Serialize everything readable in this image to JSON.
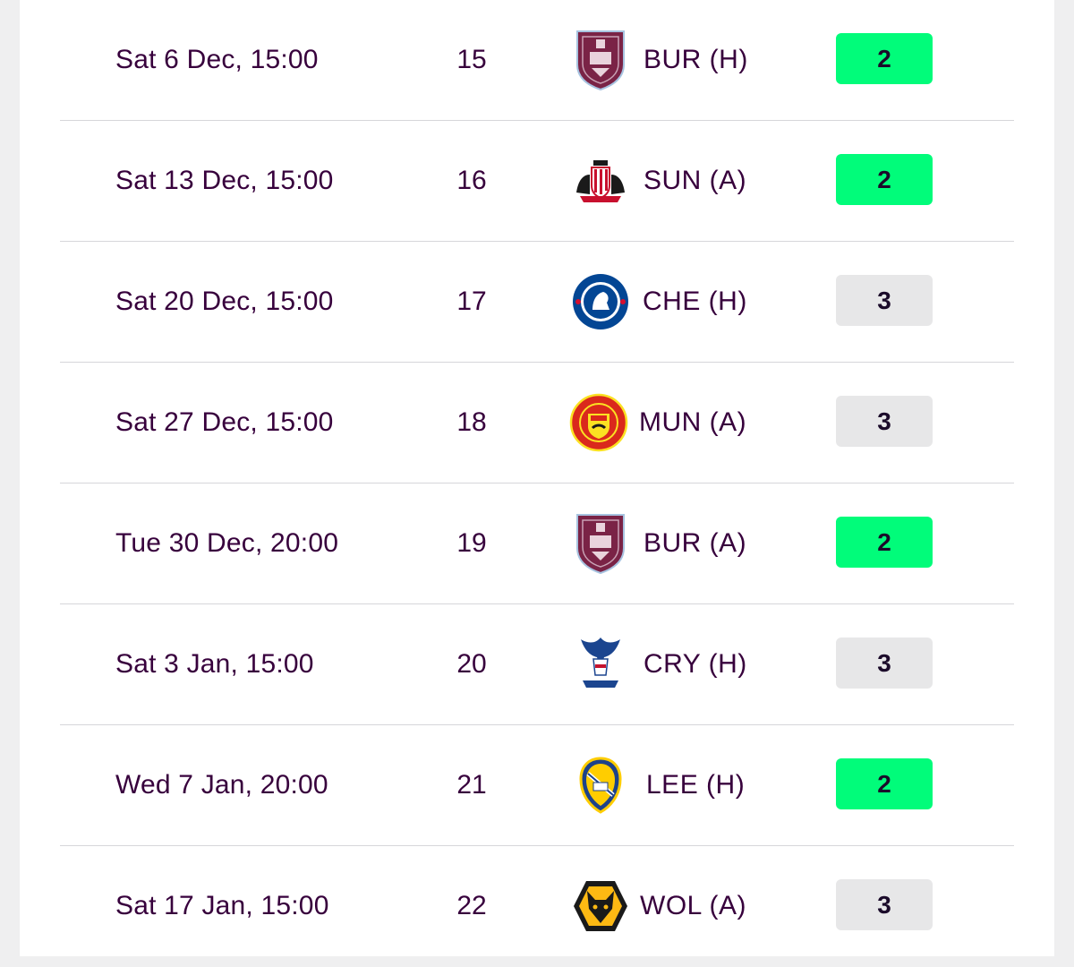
{
  "colors": {
    "text": "#37003c",
    "fdr_2": "#01fc7a",
    "fdr_3": "#e7e7e8",
    "divider": "#d6d6da"
  },
  "fixtures": [
    {
      "date": "Sat 6 Dec, 15:00",
      "gameweek": "15",
      "opponent": "BUR (H)",
      "crest": "burnley-crest-icon",
      "difficulty": "2"
    },
    {
      "date": "Sat 13 Dec, 15:00",
      "gameweek": "16",
      "opponent": "SUN (A)",
      "crest": "sunderland-crest-icon",
      "difficulty": "2"
    },
    {
      "date": "Sat 20 Dec, 15:00",
      "gameweek": "17",
      "opponent": "CHE (H)",
      "crest": "chelsea-crest-icon",
      "difficulty": "3"
    },
    {
      "date": "Sat 27 Dec, 15:00",
      "gameweek": "18",
      "opponent": "MUN (A)",
      "crest": "man-utd-crest-icon",
      "difficulty": "3"
    },
    {
      "date": "Tue 30 Dec, 20:00",
      "gameweek": "19",
      "opponent": "BUR (A)",
      "crest": "burnley-crest-icon",
      "difficulty": "2"
    },
    {
      "date": "Sat 3 Jan, 15:00",
      "gameweek": "20",
      "opponent": "CRY (H)",
      "crest": "crystal-palace-crest-icon",
      "difficulty": "3"
    },
    {
      "date": "Wed 7 Jan, 20:00",
      "gameweek": "21",
      "opponent": "LEE (H)",
      "crest": "leeds-crest-icon",
      "difficulty": "2"
    },
    {
      "date": "Sat 17 Jan, 15:00",
      "gameweek": "22",
      "opponent": "WOL (A)",
      "crest": "wolves-crest-icon",
      "difficulty": "3"
    }
  ]
}
